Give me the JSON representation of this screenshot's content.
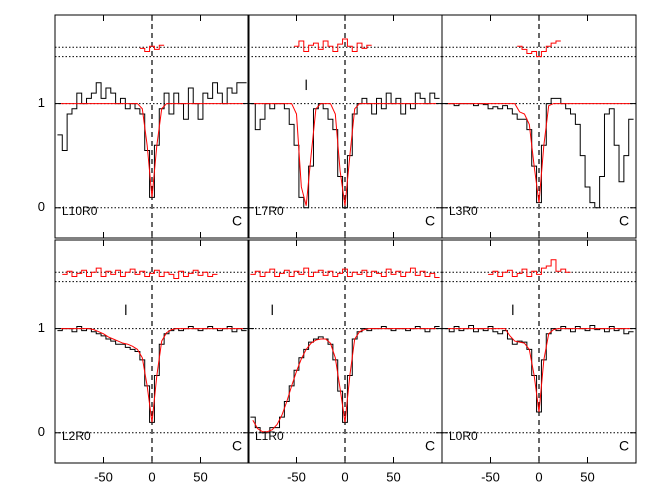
{
  "chart_data": [
    {
      "type": "step",
      "label": "L10R0",
      "corner_label": "C",
      "xlim": [
        -100,
        100
      ],
      "ylim": [
        -0.29,
        1.85
      ],
      "xticks": [
        -50,
        0,
        50
      ],
      "yticks": [
        0,
        1
      ],
      "ref_lines": [
        0,
        1,
        1.45,
        1.54
      ],
      "x": [
        -95,
        -90,
        -85,
        -80,
        -75,
        -70,
        -65,
        -60,
        -55,
        -50,
        -45,
        -40,
        -35,
        -30,
        -25,
        -20,
        -15,
        -10,
        -5,
        0,
        5,
        10,
        15,
        20,
        25,
        30,
        35,
        40,
        45,
        50,
        55,
        60,
        65,
        70,
        75,
        80,
        85,
        90,
        95
      ],
      "series": [
        {
          "color": "#000000",
          "style": "step",
          "values": [
            0.7,
            0.55,
            0.9,
            0.95,
            1.1,
            1.0,
            1.05,
            1.1,
            1.2,
            1.05,
            1.15,
            1.1,
            1.0,
            1.05,
            0.95,
            1.0,
            0.95,
            0.9,
            0.55,
            0.1,
            0.6,
            0.95,
            1.1,
            0.9,
            1.1,
            1.0,
            0.85,
            1.15,
            1.0,
            0.85,
            1.1,
            1.05,
            1.2,
            1.1,
            1.0,
            1.15,
            1.1,
            1.2,
            1.2
          ]
        },
        {
          "color": "#ff0000",
          "style": "line",
          "values": [
            1,
            1,
            1,
            1,
            1,
            1,
            1,
            1,
            1,
            1,
            1,
            1,
            1,
            1,
            1,
            1,
            1,
            0.95,
            0.6,
            0.1,
            0.6,
            0.95,
            1,
            1,
            1,
            1,
            1,
            1,
            1,
            1,
            1,
            1,
            1,
            1,
            1,
            1,
            1,
            1,
            1
          ]
        },
        {
          "color": "#ff0000",
          "style": "step",
          "values": [
            null,
            null,
            null,
            null,
            null,
            null,
            null,
            null,
            null,
            null,
            null,
            null,
            null,
            null,
            null,
            null,
            null,
            1.53,
            1.5,
            1.55,
            1.52,
            1.56,
            null,
            null,
            null,
            null,
            null,
            null,
            null,
            null,
            null,
            null,
            null,
            null,
            null,
            null,
            null,
            null,
            null
          ]
        }
      ],
      "component_x": []
    },
    {
      "type": "step",
      "label": "L7R0",
      "corner_label": "C",
      "xlim": [
        -100,
        100
      ],
      "ylim": [
        -0.29,
        1.85
      ],
      "xticks": [
        -50,
        0,
        50
      ],
      "yticks": [
        0,
        1
      ],
      "ref_lines": [
        0,
        1,
        1.45,
        1.54
      ],
      "x": [
        -95,
        -90,
        -85,
        -80,
        -75,
        -70,
        -65,
        -60,
        -55,
        -50,
        -45,
        -40,
        -35,
        -30,
        -25,
        -20,
        -15,
        -10,
        -5,
        0,
        5,
        10,
        15,
        20,
        25,
        30,
        35,
        40,
        45,
        50,
        55,
        60,
        65,
        70,
        75,
        80,
        85,
        90,
        95
      ],
      "series": [
        {
          "color": "#000000",
          "style": "step",
          "values": [
            1.0,
            0.75,
            0.85,
            1.0,
            0.95,
            1.0,
            1.0,
            0.95,
            0.8,
            0.6,
            0.1,
            0.0,
            0.4,
            0.95,
            1.0,
            0.95,
            0.85,
            0.75,
            0.3,
            0.0,
            0.5,
            0.9,
            1.0,
            1.05,
            1.0,
            0.9,
            1.05,
            0.95,
            1.1,
            1.0,
            1.05,
            0.9,
            1.0,
            0.95,
            1.1,
            1.05,
            1.0,
            1.1,
            1.05
          ]
        },
        {
          "color": "#ff0000",
          "style": "line",
          "values": [
            1,
            1,
            1,
            1,
            1,
            1,
            1,
            1,
            1,
            0.9,
            0.2,
            0.02,
            0.5,
            0.95,
            1,
            1,
            1,
            0.9,
            0.35,
            0.02,
            0.5,
            0.95,
            1,
            1,
            1,
            1,
            1,
            1,
            1,
            1,
            1,
            1,
            1,
            1,
            1,
            1,
            1,
            1,
            1
          ]
        },
        {
          "color": "#ff0000",
          "style": "step",
          "values": [
            null,
            null,
            null,
            null,
            null,
            null,
            null,
            null,
            null,
            1.55,
            1.6,
            1.5,
            1.56,
            1.58,
            1.52,
            1.6,
            1.55,
            1.5,
            1.57,
            1.62,
            1.55,
            1.5,
            1.58,
            1.53,
            1.56,
            null,
            null,
            null,
            null,
            null,
            null,
            null,
            null,
            null,
            null,
            null,
            null,
            null,
            null
          ]
        }
      ],
      "component_x": [
        -40
      ]
    },
    {
      "type": "step",
      "label": "L3R0",
      "corner_label": "C",
      "xlim": [
        -100,
        100
      ],
      "ylim": [
        -0.29,
        1.85
      ],
      "xticks": [
        -50,
        0,
        50
      ],
      "yticks": [
        0,
        1
      ],
      "ref_lines": [
        0,
        1,
        1.45,
        1.54
      ],
      "x": [
        -95,
        -90,
        -85,
        -80,
        -75,
        -70,
        -65,
        -60,
        -55,
        -50,
        -45,
        -40,
        -35,
        -30,
        -25,
        -20,
        -15,
        -10,
        -5,
        0,
        5,
        10,
        15,
        20,
        25,
        30,
        35,
        40,
        45,
        50,
        55,
        60,
        65,
        70,
        75,
        80,
        85,
        90,
        95
      ],
      "series": [
        {
          "color": "#000000",
          "style": "step",
          "values": [
            1.0,
            1.0,
            0.98,
            1.0,
            1.0,
            1.0,
            0.98,
            1.0,
            0.99,
            0.95,
            0.97,
            0.95,
            0.98,
            0.95,
            0.9,
            0.85,
            0.85,
            0.75,
            0.4,
            0.05,
            0.6,
            1.0,
            1.05,
            1.05,
            1.0,
            0.95,
            0.9,
            0.8,
            0.5,
            0.2,
            0.05,
            0.0,
            0.3,
            0.9,
            0.95,
            0.6,
            0.25,
            0.5,
            0.85
          ]
        },
        {
          "color": "#ff0000",
          "style": "line",
          "values": [
            1,
            1,
            1,
            1,
            1,
            1,
            1,
            1,
            1,
            1,
            1,
            1,
            1,
            1,
            1,
            0.92,
            0.9,
            0.8,
            0.4,
            0.05,
            0.6,
            0.98,
            1,
            1,
            1,
            1,
            1,
            1,
            1,
            1,
            1,
            1,
            1,
            1,
            1,
            1,
            1,
            1,
            1
          ]
        },
        {
          "color": "#ff0000",
          "style": "step",
          "values": [
            null,
            null,
            null,
            null,
            null,
            null,
            null,
            null,
            null,
            null,
            null,
            null,
            null,
            null,
            null,
            1.55,
            1.52,
            1.48,
            1.5,
            1.45,
            1.5,
            1.55,
            1.58,
            1.6,
            null,
            null,
            null,
            null,
            null,
            null,
            null,
            null,
            null,
            null,
            null,
            null,
            null,
            null,
            null
          ]
        }
      ],
      "component_x": []
    },
    {
      "type": "step",
      "label": "L2R0",
      "corner_label": "C",
      "xlim": [
        -100,
        100
      ],
      "ylim": [
        -0.29,
        1.85
      ],
      "xticks": [
        -50,
        0,
        50
      ],
      "yticks": [
        0,
        1
      ],
      "ref_lines": [
        0,
        1,
        1.45,
        1.54
      ],
      "x": [
        -95,
        -90,
        -85,
        -80,
        -75,
        -70,
        -65,
        -60,
        -55,
        -50,
        -45,
        -40,
        -35,
        -30,
        -25,
        -20,
        -15,
        -10,
        -5,
        0,
        5,
        10,
        15,
        20,
        25,
        30,
        35,
        40,
        45,
        50,
        55,
        60,
        65,
        70,
        75,
        80,
        85,
        90,
        95
      ],
      "series": [
        {
          "color": "#000000",
          "style": "step",
          "values": [
            0.98,
            1.0,
            1.0,
            0.97,
            1.02,
            0.98,
            1.0,
            0.97,
            0.95,
            0.93,
            0.9,
            0.88,
            0.85,
            0.85,
            0.82,
            0.8,
            0.78,
            0.7,
            0.45,
            0.1,
            0.55,
            0.85,
            0.95,
            0.98,
            1.0,
            0.98,
            1.0,
            1.02,
            1.0,
            0.98,
            1.0,
            1.02,
            1.0,
            0.98,
            1.0,
            1.02,
            0.97,
            1.0,
            0.98
          ]
        },
        {
          "color": "#ff0000",
          "style": "line",
          "values": [
            1,
            1,
            1,
            1,
            1,
            1,
            1,
            0.99,
            0.97,
            0.95,
            0.92,
            0.9,
            0.88,
            0.86,
            0.85,
            0.83,
            0.8,
            0.72,
            0.45,
            0.1,
            0.55,
            0.88,
            0.96,
            0.99,
            1,
            1,
            1,
            1,
            1,
            1,
            1,
            1,
            1,
            1,
            1,
            1,
            1,
            1,
            1
          ]
        },
        {
          "color": "#ff0000",
          "style": "step",
          "values": [
            null,
            1.52,
            1.55,
            1.5,
            1.53,
            1.56,
            1.5,
            1.54,
            1.58,
            1.5,
            1.55,
            1.52,
            1.56,
            1.5,
            1.54,
            1.57,
            1.52,
            1.55,
            1.5,
            1.53,
            1.56,
            1.5,
            1.54,
            1.52,
            1.48,
            1.55,
            1.5,
            1.53,
            1.56,
            1.51,
            1.54,
            1.5,
            1.52,
            null,
            null,
            null,
            null,
            null,
            null
          ]
        }
      ],
      "component_x": [
        -27
      ]
    },
    {
      "type": "step",
      "label": "L1R0",
      "corner_label": "C",
      "xlim": [
        -100,
        100
      ],
      "ylim": [
        -0.29,
        1.85
      ],
      "xticks": [
        -50,
        0,
        50
      ],
      "yticks": [
        0,
        1
      ],
      "ref_lines": [
        0,
        1,
        1.45,
        1.54
      ],
      "x": [
        -95,
        -90,
        -85,
        -80,
        -75,
        -70,
        -65,
        -60,
        -55,
        -50,
        -45,
        -40,
        -35,
        -30,
        -25,
        -20,
        -15,
        -10,
        -5,
        0,
        5,
        10,
        15,
        20,
        25,
        30,
        35,
        40,
        45,
        50,
        55,
        60,
        65,
        70,
        75,
        80,
        85,
        90,
        95
      ],
      "series": [
        {
          "color": "#000000",
          "style": "step",
          "values": [
            0.15,
            0.05,
            0.0,
            0.0,
            0.05,
            0.05,
            0.15,
            0.3,
            0.45,
            0.6,
            0.72,
            0.8,
            0.87,
            0.9,
            0.92,
            0.9,
            0.85,
            0.7,
            0.4,
            0.1,
            0.55,
            0.9,
            0.97,
            1.0,
            0.98,
            1.0,
            1.0,
            1.02,
            1.0,
            0.98,
            1.0,
            1.0,
            0.98,
            1.0,
            1.02,
            1.0,
            0.97,
            1.0,
            1.02
          ]
        },
        {
          "color": "#ff0000",
          "style": "line",
          "values": [
            0.12,
            0.04,
            0.01,
            0.01,
            0.03,
            0.08,
            0.17,
            0.3,
            0.45,
            0.59,
            0.71,
            0.8,
            0.86,
            0.89,
            0.9,
            0.9,
            0.86,
            0.72,
            0.42,
            0.1,
            0.55,
            0.9,
            0.97,
            0.99,
            1,
            1,
            1,
            1,
            1,
            1,
            1,
            1,
            1,
            1,
            1,
            1,
            1,
            1,
            1
          ]
        },
        {
          "color": "#ff0000",
          "style": "step",
          "values": [
            1.52,
            1.55,
            1.5,
            1.54,
            1.57,
            1.5,
            1.53,
            1.56,
            1.5,
            1.55,
            1.52,
            1.58,
            1.5,
            1.54,
            1.56,
            1.51,
            1.55,
            1.5,
            1.53,
            1.57,
            1.5,
            1.54,
            1.52,
            1.56,
            1.5,
            1.55,
            1.53,
            1.5,
            1.57,
            1.52,
            1.55,
            1.5,
            1.54,
            1.58,
            1.51,
            1.55,
            1.5,
            1.53,
            1.49
          ]
        }
      ],
      "component_x": [
        -75
      ]
    },
    {
      "type": "step",
      "label": "L0R0",
      "corner_label": "C",
      "xlim": [
        -100,
        100
      ],
      "ylim": [
        -0.29,
        1.85
      ],
      "xticks": [
        -50,
        0,
        50
      ],
      "yticks": [
        0,
        1
      ],
      "ref_lines": [
        0,
        1,
        1.45,
        1.54
      ],
      "x": [
        -95,
        -90,
        -85,
        -80,
        -75,
        -70,
        -65,
        -60,
        -55,
        -50,
        -45,
        -40,
        -35,
        -30,
        -25,
        -20,
        -15,
        -10,
        -5,
        0,
        5,
        10,
        15,
        20,
        25,
        30,
        35,
        40,
        45,
        50,
        55,
        60,
        65,
        70,
        75,
        80,
        85,
        90,
        95
      ],
      "series": [
        {
          "color": "#000000",
          "style": "step",
          "values": [
            1.0,
            0.97,
            1.02,
            0.98,
            1.0,
            1.03,
            0.97,
            1.0,
            0.98,
            1.02,
            0.97,
            0.95,
            0.98,
            0.9,
            0.85,
            0.88,
            0.87,
            0.8,
            0.55,
            0.2,
            0.7,
            0.95,
            1.0,
            0.98,
            1.02,
            1.0,
            0.97,
            1.02,
            1.0,
            0.98,
            1.03,
            0.99,
            1.0,
            0.97,
            1.02,
            0.98,
            1.0,
            0.95,
            0.97
          ]
        },
        {
          "color": "#ff0000",
          "style": "line",
          "values": [
            1,
            1,
            1,
            1,
            1,
            1,
            1,
            1,
            1,
            1,
            1,
            1,
            1,
            0.93,
            0.88,
            0.87,
            0.86,
            0.8,
            0.55,
            0.2,
            0.7,
            0.95,
            0.99,
            1,
            1,
            1,
            1,
            1,
            1,
            1,
            1,
            1,
            1,
            1,
            1,
            1,
            1,
            1,
            1
          ]
        },
        {
          "color": "#ff0000",
          "style": "step",
          "values": [
            null,
            null,
            null,
            null,
            null,
            null,
            null,
            null,
            null,
            1.52,
            1.55,
            1.5,
            1.54,
            1.56,
            1.5,
            1.53,
            1.57,
            1.5,
            1.55,
            1.52,
            1.58,
            1.6,
            1.66,
            1.55,
            1.57,
            1.54,
            null,
            null,
            null,
            null,
            null,
            null,
            null,
            null,
            null,
            null,
            null,
            null,
            null
          ]
        }
      ],
      "component_x": [
        -27
      ]
    }
  ]
}
